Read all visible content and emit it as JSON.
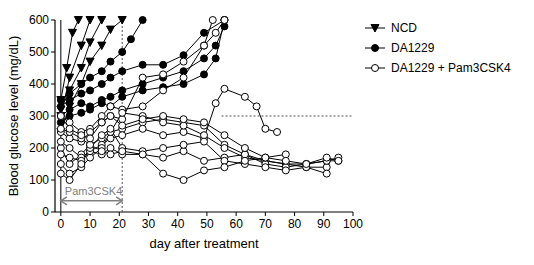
{
  "chart_data": {
    "type": "line",
    "x_label": "day after treatment",
    "y_label": "Blood glucose level (mg/dL)",
    "xlim": [
      -2,
      100
    ],
    "xticks": [
      0,
      10,
      20,
      30,
      40,
      50,
      60,
      70,
      80,
      90,
      100
    ],
    "ylim": [
      0,
      600
    ],
    "yticks": [
      0,
      100,
      200,
      300,
      400,
      500,
      600
    ],
    "legend": "top-right",
    "annotations": [
      {
        "text": "Pam3CSK4",
        "x_start": 0,
        "x_end": 21,
        "y": 35,
        "color": "#808080"
      }
    ],
    "reference_lines": [
      {
        "axis": "x",
        "value": 0,
        "line_style": "solid"
      },
      {
        "axis": "x",
        "value": 21,
        "line_style": "dotted"
      },
      {
        "axis": "y",
        "value": 300,
        "from": 55,
        "to": 100,
        "line_style": "dotted"
      }
    ],
    "series": [
      {
        "name": "NCD",
        "color": "#000000",
        "marker": "triangle-down",
        "lines": [
          {
            "x": [
              0,
              2,
              4,
              6
            ],
            "values": [
              350,
              450,
              560,
              600
            ]
          },
          {
            "x": [
              0,
              3,
              7,
              10
            ],
            "values": [
              300,
              420,
              520,
              600
            ]
          },
          {
            "x": [
              0,
              3,
              7,
              10,
              14
            ],
            "values": [
              320,
              380,
              450,
              530,
              600
            ]
          },
          {
            "x": [
              0,
              3,
              7,
              10,
              14,
              17,
              21
            ],
            "values": [
              250,
              330,
              400,
              470,
              520,
              570,
              600
            ]
          }
        ]
      },
      {
        "name": "DA1229",
        "color": "#000000",
        "marker": "circle",
        "lines": [
          {
            "x": [
              0,
              3,
              7,
              10,
              14,
              17,
              21,
              24,
              28
            ],
            "values": [
              350,
              370,
              400,
              420,
              440,
              470,
              500,
              540,
              600
            ]
          },
          {
            "x": [
              0,
              3,
              7,
              10,
              14,
              17,
              21,
              28,
              35,
              42,
              49,
              56
            ],
            "values": [
              330,
              350,
              370,
              380,
              400,
              420,
              440,
              460,
              460,
              490,
              560,
              600
            ]
          },
          {
            "x": [
              0,
              3,
              7,
              10,
              14,
              17,
              21,
              28,
              35,
              42,
              49,
              53,
              56
            ],
            "values": [
              300,
              320,
              340,
              330,
              350,
              360,
              380,
              400,
              420,
              440,
              480,
              520,
              580
            ]
          },
          {
            "x": [
              0,
              3,
              7,
              10,
              14,
              17,
              21,
              28,
              35,
              42,
              49,
              53,
              56
            ],
            "values": [
              280,
              300,
              310,
              320,
              340,
              330,
              360,
              380,
              390,
              400,
              430,
              480,
              600
            ]
          }
        ]
      },
      {
        "name": "DA1229 + Pam3CSK4",
        "color": "#000000",
        "marker": "circle-open",
        "lines": [
          {
            "x": [
              0,
              3,
              7,
              10,
              14,
              17,
              21,
              28,
              35,
              42,
              49,
              52
            ],
            "values": [
              300,
              280,
              250,
              260,
              300,
              330,
              320,
              330,
              380,
              420,
              520,
              600
            ]
          },
          {
            "x": [
              0,
              3,
              7,
              10,
              14,
              17,
              21,
              28,
              35,
              42,
              49,
              53,
              56
            ],
            "values": [
              250,
              230,
              220,
              250,
              280,
              300,
              290,
              420,
              430,
              470,
              520,
              560,
              600
            ]
          },
          {
            "x": [
              0,
              3,
              7,
              10,
              14,
              17,
              21,
              28,
              35,
              42,
              49,
              56,
              63,
              70,
              77,
              84,
              91,
              95
            ],
            "values": [
              200,
              150,
              180,
              210,
              230,
              250,
              260,
              280,
              290,
              280,
              270,
              210,
              180,
              160,
              150,
              150,
              160,
              160
            ]
          },
          {
            "x": [
              0,
              3,
              7,
              10,
              14,
              17,
              21,
              28,
              35,
              42,
              49,
              53,
              56,
              63,
              67,
              70,
              74
            ],
            "values": [
              220,
              200,
              170,
              190,
              210,
              230,
              240,
              260,
              240,
              250,
              230,
              340,
              385,
              360,
              330,
              260,
              250
            ]
          },
          {
            "x": [
              0,
              3,
              7,
              10,
              14,
              17,
              21,
              28,
              35,
              42,
              49,
              56,
              63,
              70,
              77,
              84,
              91
            ],
            "values": [
              150,
              120,
              140,
              170,
              200,
              250,
              310,
              300,
              280,
              270,
              240,
              200,
              170,
              160,
              150,
              140,
              140
            ]
          },
          {
            "x": [
              0,
              3,
              7,
              10,
              14,
              17,
              21,
              28,
              35,
              42,
              49,
              56,
              63,
              70,
              77,
              84,
              91,
              95
            ],
            "values": [
              180,
              170,
              160,
              190,
              180,
              200,
              180,
              180,
              170,
              190,
              160,
              170,
              180,
              150,
              140,
              150,
              160,
              170
            ]
          },
          {
            "x": [
              0,
              3,
              7,
              10,
              14,
              17,
              21,
              28,
              35,
              42,
              49,
              56,
              63,
              70,
              77,
              84,
              91
            ],
            "values": [
              120,
              100,
              150,
              200,
              240,
              260,
              200,
              190,
              200,
              210,
              220,
              160,
              150,
              140,
              130,
              140,
              120
            ]
          },
          {
            "x": [
              0,
              3,
              7,
              10,
              14,
              17,
              21,
              28,
              35,
              42,
              49,
              56,
              63,
              70,
              77
            ],
            "values": [
              260,
              250,
              230,
              210,
              190,
              180,
              190,
              180,
              120,
              100,
              130,
              140,
              160,
              170,
              180
            ]
          },
          {
            "x": [
              0,
              3,
              7,
              10,
              14,
              17,
              21,
              28,
              35,
              42,
              49,
              56,
              63,
              70,
              77,
              84,
              91,
              95
            ],
            "values": [
              300,
              260,
              240,
              230,
              280,
              300,
              270,
              290,
              300,
              290,
              280,
              240,
              200,
              170,
              160,
              150,
              170,
              160
            ]
          }
        ]
      }
    ]
  }
}
